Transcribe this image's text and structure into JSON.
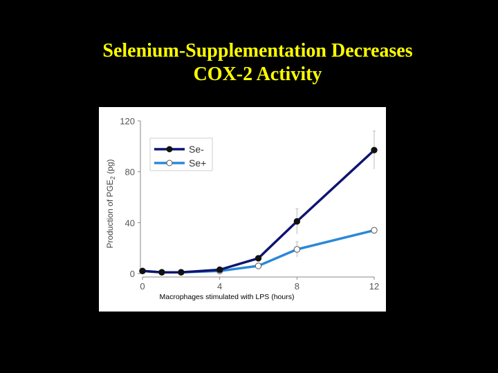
{
  "slide": {
    "title_line1": "Selenium-Supplementation Decreases",
    "title_line2": "COX-2 Activity"
  },
  "colors": {
    "background": "#000000",
    "title": "#ffff00",
    "se_minus": "#0d1470",
    "se_plus": "#2b88d8",
    "axis": "#888888"
  },
  "chart_data": {
    "type": "line",
    "ylabel_main": "Production of PGE",
    "ylabel_sub": "2",
    "ylabel_unit": " (pg)",
    "xlabel": "Macrophages stimulated with LPS (hours)",
    "xlim": [
      0,
      12
    ],
    "ylim": [
      0,
      120
    ],
    "xticks": [
      0,
      4,
      8,
      12
    ],
    "yticks": [
      0,
      40,
      80,
      120
    ],
    "legend_position": "top-left",
    "grid": false,
    "series": [
      {
        "name": "Se-",
        "marker": "filled",
        "color": "#0d1470",
        "x": [
          0,
          1,
          2,
          4,
          6,
          8,
          12
        ],
        "y": [
          2,
          1,
          1,
          3,
          12,
          41,
          97
        ],
        "error": [
          0,
          0,
          0,
          0,
          0,
          10,
          15
        ]
      },
      {
        "name": "Se+",
        "marker": "open",
        "color": "#2b88d8",
        "x": [
          0,
          1,
          2,
          4,
          6,
          8,
          12
        ],
        "y": [
          2,
          1,
          1,
          2,
          6,
          19,
          34
        ],
        "error": [
          0,
          0,
          0,
          0,
          0,
          6,
          0
        ]
      }
    ]
  }
}
